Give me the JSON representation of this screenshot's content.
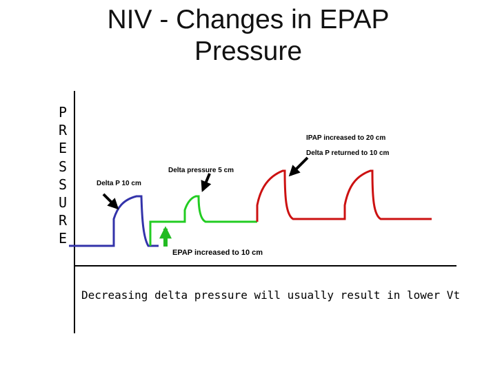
{
  "slide": {
    "title_line1": "NIV - Changes in EPAP",
    "title_line2": "Pressure",
    "y_axis_letters": [
      "P",
      "R",
      "E",
      "S",
      "S",
      "U",
      "R",
      "E"
    ],
    "annotations": {
      "delta_p_10": "Delta P 10 cm",
      "delta_pressure_5": "Delta pressure 5 cm",
      "epap_increased": "EPAP increased to 10 cm",
      "ipap_increased": "IPAP increased to 20 cm",
      "delta_p_returned": "Delta P returned to 10 cm"
    },
    "footer_text": "Decreasing delta pressure will usually result in lower Vt"
  },
  "colors": {
    "baseline_waveform": "#3333aa",
    "reduced_delta_waveform": "#22cc22",
    "raised_ipap_waveform": "#cc1111",
    "annotation_arrow": "#000000",
    "epap_arrow": "#22bb22",
    "axes": "#000000"
  },
  "icons": {
    "callout_arrows": "black-diagonal-arrow-icon",
    "epap_arrow": "green-up-arrow-icon"
  }
}
